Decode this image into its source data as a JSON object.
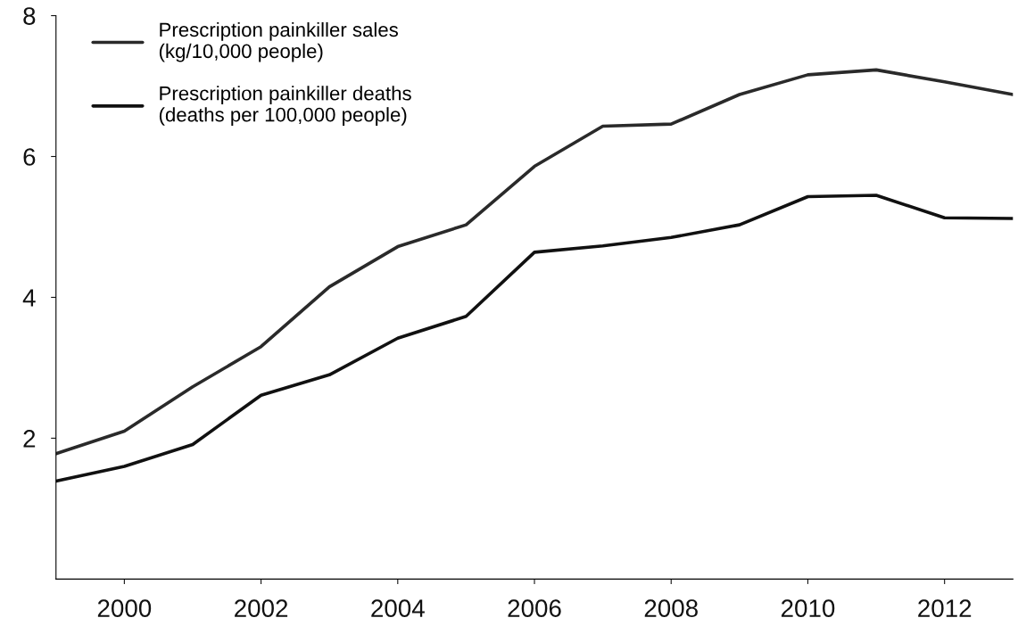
{
  "chart_data": {
    "type": "line",
    "x": [
      1999,
      2000,
      2001,
      2002,
      2003,
      2004,
      2005,
      2006,
      2007,
      2008,
      2009,
      2010,
      2011,
      2012,
      2013
    ],
    "series": [
      {
        "name": "Prescription painkiller sales\n(kg/10,000 people)",
        "color": "#2a2a2a",
        "values": [
          1.78,
          2.1,
          2.73,
          3.3,
          4.15,
          4.72,
          5.03,
          5.86,
          6.43,
          6.46,
          6.88,
          7.16,
          7.23,
          7.06,
          6.88
        ]
      },
      {
        "name": "Prescription painkiller deaths\n(deaths per 100,000 people)",
        "color": "#111111",
        "values": [
          1.39,
          1.6,
          1.91,
          2.61,
          2.9,
          3.42,
          3.73,
          4.64,
          4.73,
          4.85,
          5.03,
          5.43,
          5.45,
          5.13,
          5.12
        ]
      }
    ],
    "xlim": [
      1999,
      2013
    ],
    "xticks": [
      2000,
      2002,
      2004,
      2006,
      2008,
      2010,
      2012
    ],
    "ylim": [
      0,
      8
    ],
    "yticks": [
      2,
      4,
      6,
      8
    ],
    "grid": false,
    "legend": "top left",
    "marker": "none",
    "line_style": "solid"
  }
}
